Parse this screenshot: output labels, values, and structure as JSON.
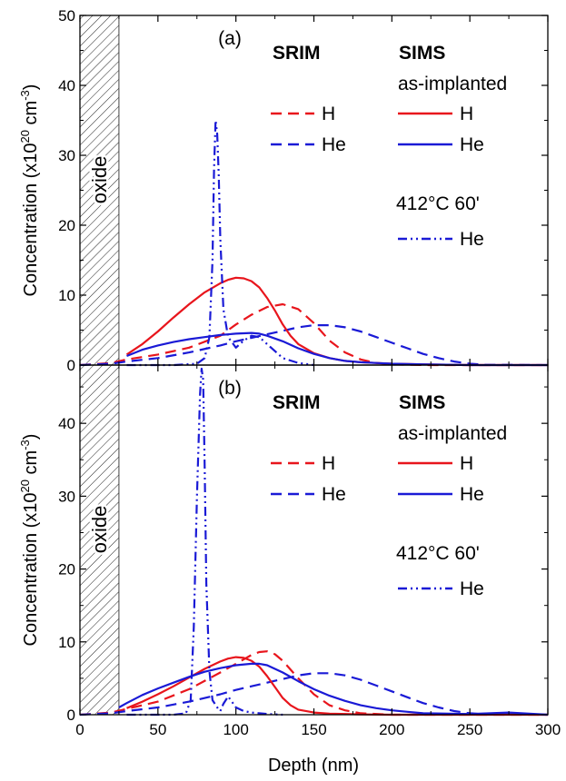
{
  "chart_data": [
    {
      "type": "line",
      "panel_label": "(a)",
      "xlim": [
        0,
        300
      ],
      "ylim": [
        0,
        50
      ],
      "x_ticks": [
        0,
        50,
        100,
        150,
        200,
        250,
        300
      ],
      "y_ticks": [
        0,
        10,
        20,
        30,
        40,
        50
      ],
      "xlabel": "Depth (nm)",
      "ylabel": {
        "base": "Concentration (x10",
        "sup1": "20",
        "mid": " cm",
        "sup2": "-3",
        "end": ")"
      },
      "oxide_region": [
        0,
        25
      ],
      "oxide_label": "oxide",
      "legend": {
        "srim_header": "SRIM",
        "sims_header": "SIMS",
        "as_implanted": "as-implanted",
        "anneal_header": "412°C 60'",
        "h_label": "H",
        "he_label": "He"
      },
      "colors": {
        "H": "#e8151c",
        "He": "#1a1ad6"
      },
      "series": [
        {
          "key": "srim_H",
          "legend": "H",
          "group": "SRIM",
          "style": "dash",
          "color": "#e8151c",
          "x": [
            0,
            20,
            30,
            50,
            70,
            90,
            100,
            110,
            120,
            130,
            140,
            150,
            160,
            170,
            180,
            190,
            200,
            220,
            250,
            300
          ],
          "y": [
            0,
            0.3,
            0.8,
            1.5,
            2.5,
            4.2,
            5.8,
            7.2,
            8.3,
            8.7,
            8.0,
            6.0,
            3.5,
            1.8,
            0.8,
            0.3,
            0.1,
            0,
            0,
            0
          ]
        },
        {
          "key": "srim_He",
          "legend": "He",
          "group": "SRIM",
          "style": "dash",
          "color": "#1a1ad6",
          "x": [
            0,
            20,
            30,
            50,
            70,
            90,
            100,
            110,
            120,
            130,
            140,
            150,
            160,
            170,
            180,
            190,
            200,
            210,
            220,
            230,
            240,
            250,
            260,
            300
          ],
          "y": [
            0,
            0.2,
            0.5,
            1.0,
            1.8,
            2.8,
            3.4,
            3.9,
            4.4,
            4.9,
            5.4,
            5.7,
            5.7,
            5.4,
            4.8,
            4.0,
            3.2,
            2.4,
            1.6,
            1.0,
            0.5,
            0.2,
            0.05,
            0
          ]
        },
        {
          "key": "sims_H",
          "legend": "H",
          "group": "SIMS as-implanted",
          "style": "solid",
          "color": "#e8151c",
          "x": [
            30,
            40,
            50,
            60,
            70,
            80,
            90,
            95,
            100,
            105,
            110,
            115,
            120,
            125,
            130,
            135,
            140,
            150,
            160,
            170,
            180,
            190,
            200,
            220,
            250,
            300
          ],
          "y": [
            1.5,
            3.0,
            4.8,
            6.8,
            8.7,
            10.4,
            11.7,
            12.2,
            12.5,
            12.4,
            12.0,
            11.1,
            9.6,
            7.8,
            5.8,
            4.2,
            3.0,
            1.7,
            1.0,
            0.6,
            0.4,
            0.3,
            0.2,
            0.1,
            0,
            0
          ]
        },
        {
          "key": "sims_He",
          "legend": "He",
          "group": "SIMS as-implanted",
          "style": "solid",
          "color": "#1a1ad6",
          "x": [
            30,
            40,
            50,
            60,
            70,
            80,
            90,
            100,
            110,
            115,
            120,
            130,
            140,
            150,
            160,
            170,
            180,
            190,
            200,
            220,
            250,
            300
          ],
          "y": [
            1.3,
            2.2,
            2.8,
            3.3,
            3.7,
            4.0,
            4.3,
            4.5,
            4.6,
            4.5,
            4.2,
            3.4,
            2.4,
            1.6,
            1.0,
            0.6,
            0.4,
            0.3,
            0.2,
            0.1,
            0,
            0
          ]
        },
        {
          "key": "anneal_He",
          "legend": "He",
          "group": "412°C 60'",
          "style": "dashdotdot",
          "color": "#1a1ad6",
          "x": [
            30,
            60,
            75,
            80,
            83,
            85,
            86,
            87,
            88,
            89,
            90,
            92,
            95,
            100,
            105,
            110,
            115,
            120,
            125,
            130,
            140,
            150
          ],
          "y": [
            0,
            0,
            0.2,
            1.0,
            4.0,
            15.0,
            28.0,
            35.0,
            33.0,
            27.0,
            18.0,
            8.0,
            4.0,
            2.5,
            3.5,
            4.2,
            4.0,
            3.0,
            2.0,
            1.0,
            0.3,
            0
          ]
        }
      ]
    },
    {
      "type": "line",
      "panel_label": "(b)",
      "xlim": [
        0,
        300
      ],
      "ylim": [
        0,
        48
      ],
      "x_ticks": [
        0,
        50,
        100,
        150,
        200,
        250,
        300
      ],
      "y_ticks": [
        0,
        10,
        20,
        30,
        40
      ],
      "xlabel": "Depth (nm)",
      "ylabel": {
        "base": "Concentration (x10",
        "sup1": "20",
        "mid": " cm",
        "sup2": "-3",
        "end": ")"
      },
      "oxide_region": [
        0,
        25
      ],
      "oxide_label": "oxide",
      "legend": {
        "srim_header": "SRIM",
        "sims_header": "SIMS",
        "as_implanted": "as-implanted",
        "anneal_header": "412°C 60'",
        "h_label": "H",
        "he_label": "He"
      },
      "colors": {
        "H": "#e8151c",
        "He": "#1a1ad6"
      },
      "series": [
        {
          "key": "srim_H",
          "legend": "H",
          "group": "SRIM",
          "style": "dash",
          "color": "#e8151c",
          "x": [
            0,
            20,
            30,
            50,
            70,
            90,
            100,
            110,
            115,
            120,
            125,
            130,
            140,
            150,
            160,
            170,
            180,
            200,
            250,
            300
          ],
          "y": [
            0,
            0.3,
            0.8,
            1.8,
            3.5,
            5.8,
            7.0,
            8.2,
            8.6,
            8.7,
            8.3,
            7.4,
            5.0,
            2.8,
            1.3,
            0.6,
            0.2,
            0,
            0,
            0
          ]
        },
        {
          "key": "srim_He",
          "legend": "He",
          "group": "SRIM",
          "style": "dash",
          "color": "#1a1ad6",
          "x": [
            0,
            20,
            30,
            50,
            70,
            90,
            100,
            110,
            120,
            130,
            140,
            150,
            160,
            170,
            180,
            190,
            200,
            210,
            220,
            230,
            240,
            250,
            260,
            300
          ],
          "y": [
            0,
            0.2,
            0.5,
            1.0,
            1.8,
            2.8,
            3.4,
            3.9,
            4.4,
            4.9,
            5.4,
            5.7,
            5.7,
            5.4,
            4.8,
            4.0,
            3.2,
            2.4,
            1.6,
            1.0,
            0.5,
            0.2,
            0.05,
            0
          ]
        },
        {
          "key": "sims_H",
          "legend": "H",
          "group": "SIMS as-implanted",
          "style": "solid",
          "color": "#e8151c",
          "x": [
            30,
            40,
            50,
            60,
            70,
            80,
            90,
            95,
            100,
            105,
            110,
            115,
            120,
            125,
            130,
            135,
            140,
            150,
            160,
            180,
            200,
            250,
            300
          ],
          "y": [
            0.9,
            1.8,
            2.8,
            3.9,
            5.1,
            6.3,
            7.3,
            7.7,
            7.9,
            7.8,
            7.4,
            6.6,
            5.3,
            3.8,
            2.3,
            1.3,
            0.7,
            0.3,
            0.15,
            0.05,
            0,
            0,
            0
          ]
        },
        {
          "key": "sims_He",
          "legend": "He",
          "group": "SIMS as-implanted",
          "style": "solid",
          "color": "#1a1ad6",
          "x": [
            25,
            30,
            40,
            50,
            60,
            70,
            80,
            90,
            100,
            110,
            115,
            120,
            130,
            140,
            150,
            160,
            170,
            180,
            190,
            200,
            210,
            220,
            250,
            275,
            300
          ],
          "y": [
            1.0,
            1.6,
            2.7,
            3.6,
            4.4,
            5.2,
            5.9,
            6.4,
            6.8,
            7.0,
            7.0,
            6.8,
            5.8,
            4.6,
            3.5,
            2.6,
            1.9,
            1.3,
            0.9,
            0.6,
            0.4,
            0.2,
            0.1,
            0.3,
            0
          ]
        },
        {
          "key": "anneal_He",
          "legend": "He",
          "group": "412°C 60'",
          "style": "dashdotdot",
          "color": "#1a1ad6",
          "x": [
            30,
            60,
            68,
            71,
            73,
            75,
            77,
            78,
            79,
            80,
            81,
            83,
            85,
            88,
            90,
            92,
            95,
            100,
            105,
            110,
            120,
            130
          ],
          "y": [
            0,
            0,
            0.2,
            2.0,
            12.0,
            30.0,
            44.0,
            47.5,
            46.0,
            34.0,
            18.0,
            6.0,
            2.0,
            1.0,
            0.5,
            1.5,
            2.5,
            1.0,
            0.5,
            0.3,
            0.1,
            0
          ]
        }
      ]
    }
  ]
}
